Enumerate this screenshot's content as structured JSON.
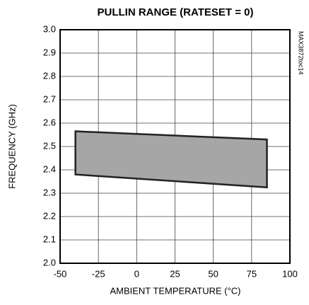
{
  "chart_data": {
    "type": "range",
    "title": "PULLIN RANGE (RATESET = 0)",
    "x_label": "AMBIENT TEMPERATURE (°C)",
    "y_label": "FREQUENCY (GHz)",
    "annotation": "MAX3872toc14",
    "x": [
      -40,
      85
    ],
    "high": [
      2.565,
      2.53
    ],
    "low": [
      2.38,
      2.325
    ],
    "color": "#a6a6a6",
    "xlim": [
      -50,
      100
    ],
    "xticks": [
      -50,
      -25,
      0,
      25,
      50,
      75,
      100
    ],
    "ylim": [
      2.0,
      3.0
    ],
    "yticks": [
      {
        "value": 2.0,
        "label": "2.0"
      },
      2.1,
      2.2,
      2.3,
      2.4,
      2.5,
      2.6,
      2.7,
      2.8,
      2.9,
      {
        "value": 3.0,
        "label": "3.0"
      }
    ],
    "grid": true
  }
}
